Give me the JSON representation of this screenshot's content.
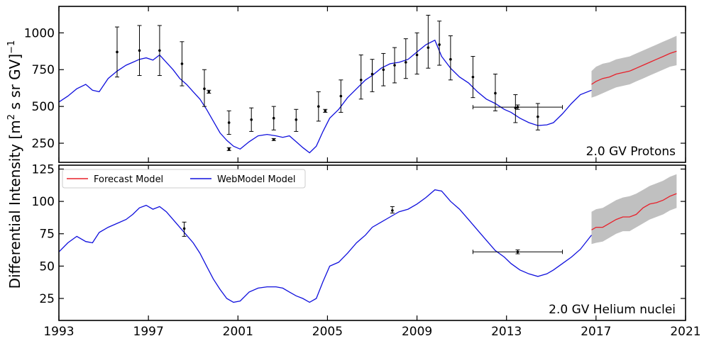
{
  "figure": {
    "ylabel": "Differential Intensity [m$^{2}$ s sr GV]$^{-1}$",
    "ylabel_main": "Differential Intensity [m",
    "ylabel_sup1": "2",
    "ylabel_mid": " s sr GV]",
    "ylabel_sup2": "−1",
    "xlim": [
      1993,
      2021
    ],
    "xticks": [
      1993,
      1997,
      2001,
      2005,
      2009,
      2013,
      2017,
      2021
    ],
    "colors": {
      "forecast": "#e8202a",
      "webmodel": "#1010dd",
      "band": "#c0c0c0",
      "points": "#000000"
    },
    "legend": {
      "position": "top-left of lower panel",
      "entries": [
        "Forecast Model",
        "WebModel Model"
      ]
    }
  },
  "chart_data": [
    {
      "type": "line",
      "title": "2.0 GV Protons",
      "ylim": [
        120,
        1180
      ],
      "yticks": [
        250,
        500,
        750,
        1000
      ],
      "series": [
        {
          "name": "WebModel Model",
          "color": "#1010dd",
          "x": [
            1993.0,
            1993.4,
            1993.8,
            1994.2,
            1994.5,
            1994.8,
            1995.2,
            1995.6,
            1996.0,
            1996.3,
            1996.6,
            1996.9,
            1997.2,
            1997.5,
            1997.8,
            1998.1,
            1998.4,
            1998.7,
            1999.0,
            1999.3,
            1999.6,
            1999.9,
            2000.2,
            2000.5,
            2000.8,
            2001.1,
            2001.5,
            2001.9,
            2002.3,
            2002.7,
            2003.0,
            2003.3,
            2003.6,
            2003.9,
            2004.2,
            2004.5,
            2004.8,
            2005.1,
            2005.5,
            2005.9,
            2006.3,
            2006.7,
            2007.0,
            2007.4,
            2007.8,
            2008.2,
            2008.6,
            2009.0,
            2009.4,
            2009.8,
            2010.1,
            2010.5,
            2010.9,
            2011.3,
            2011.7,
            2012.1,
            2012.5,
            2012.9,
            2013.2,
            2013.6,
            2014.0,
            2014.4,
            2014.8,
            2015.1,
            2015.5,
            2015.9,
            2016.3,
            2016.8
          ],
          "y": [
            530,
            570,
            620,
            650,
            610,
            600,
            690,
            740,
            780,
            800,
            820,
            830,
            815,
            850,
            800,
            750,
            690,
            650,
            600,
            550,
            480,
            400,
            320,
            270,
            230,
            210,
            260,
            300,
            310,
            300,
            290,
            300,
            260,
            220,
            185,
            230,
            330,
            420,
            480,
            560,
            620,
            680,
            710,
            760,
            790,
            800,
            820,
            870,
            920,
            950,
            840,
            760,
            700,
            660,
            600,
            550,
            520,
            480,
            460,
            420,
            390,
            370,
            375,
            390,
            450,
            520,
            580,
            610
          ]
        },
        {
          "name": "Forecast Model",
          "color": "#e8202a",
          "x": [
            2016.8,
            2017.0,
            2017.3,
            2017.6,
            2017.9,
            2018.2,
            2018.5,
            2018.8,
            2019.1,
            2019.4,
            2019.7,
            2020.0,
            2020.3,
            2020.6
          ],
          "y": [
            650,
            670,
            690,
            700,
            720,
            730,
            740,
            760,
            780,
            800,
            820,
            840,
            860,
            875
          ],
          "band_low": [
            560,
            570,
            590,
            610,
            630,
            640,
            650,
            670,
            690,
            710,
            730,
            750,
            770,
            780
          ],
          "band_high": [
            740,
            770,
            790,
            800,
            820,
            830,
            840,
            860,
            880,
            900,
            920,
            940,
            960,
            980
          ]
        }
      ],
      "points": [
        {
          "x": 1995.6,
          "y": 870,
          "lo": 700,
          "hi": 1040
        },
        {
          "x": 1996.6,
          "y": 880,
          "lo": 710,
          "hi": 1050
        },
        {
          "x": 1997.5,
          "y": 880,
          "lo": 710,
          "hi": 1050
        },
        {
          "x": 1998.5,
          "y": 790,
          "lo": 640,
          "hi": 940
        },
        {
          "x": 1999.5,
          "y": 620,
          "lo": 500,
          "hi": 750
        },
        {
          "x": 1999.7,
          "y": 600,
          "lo": 590,
          "hi": 610
        },
        {
          "x": 2000.6,
          "y": 390,
          "lo": 310,
          "hi": 470
        },
        {
          "x": 2001.6,
          "y": 410,
          "lo": 330,
          "hi": 490
        },
        {
          "x": 2002.6,
          "y": 420,
          "lo": 340,
          "hi": 500
        },
        {
          "x": 2003.6,
          "y": 410,
          "lo": 330,
          "hi": 480
        },
        {
          "x": 2004.6,
          "y": 500,
          "lo": 400,
          "hi": 600
        },
        {
          "x": 2005.6,
          "y": 570,
          "lo": 460,
          "hi": 680
        },
        {
          "x": 2006.5,
          "y": 680,
          "lo": 550,
          "hi": 850
        },
        {
          "x": 2007.0,
          "y": 720,
          "lo": 600,
          "hi": 820
        },
        {
          "x": 2007.5,
          "y": 750,
          "lo": 640,
          "hi": 860
        },
        {
          "x": 2008.0,
          "y": 780,
          "lo": 660,
          "hi": 900
        },
        {
          "x": 2008.5,
          "y": 800,
          "lo": 690,
          "hi": 960
        },
        {
          "x": 2009.0,
          "y": 850,
          "lo": 720,
          "hi": 1000
        },
        {
          "x": 2009.5,
          "y": 900,
          "lo": 760,
          "hi": 1120
        },
        {
          "x": 2010.0,
          "y": 920,
          "lo": 780,
          "hi": 1080
        },
        {
          "x": 2010.5,
          "y": 820,
          "lo": 680,
          "hi": 980
        },
        {
          "x": 2011.5,
          "y": 700,
          "lo": 560,
          "hi": 840
        },
        {
          "x": 2012.5,
          "y": 590,
          "lo": 470,
          "hi": 720
        },
        {
          "x": 2013.4,
          "y": 490,
          "lo": 390,
          "hi": 580
        },
        {
          "x": 2014.4,
          "y": 430,
          "lo": 340,
          "hi": 520
        },
        {
          "x": 2000.6,
          "y": 210,
          "lo": 200,
          "hi": 220
        },
        {
          "x": 2002.6,
          "y": 275,
          "lo": 268,
          "hi": 282
        },
        {
          "x": 2004.9,
          "y": 470,
          "lo": 460,
          "hi": 480
        },
        {
          "x": 2013.5,
          "y": 495,
          "xlo": 2011.5,
          "xhi": 2015.5,
          "lo": 480,
          "hi": 510
        }
      ],
      "annotation": "2.0 GV Protons"
    },
    {
      "type": "line",
      "title": "2.0 GV Helium nuclei",
      "ylim": [
        8,
        128
      ],
      "yticks": [
        25,
        50,
        75,
        100,
        125
      ],
      "series": [
        {
          "name": "WebModel Model",
          "color": "#1010dd",
          "x": [
            1993.0,
            1993.4,
            1993.8,
            1994.2,
            1994.5,
            1994.8,
            1995.2,
            1995.6,
            1996.0,
            1996.3,
            1996.6,
            1996.9,
            1997.2,
            1997.5,
            1997.8,
            1998.1,
            1998.4,
            1998.7,
            1999.0,
            1999.3,
            1999.6,
            1999.9,
            2000.2,
            2000.5,
            2000.8,
            2001.1,
            2001.5,
            2001.9,
            2002.3,
            2002.7,
            2003.0,
            2003.3,
            2003.6,
            2003.9,
            2004.2,
            2004.5,
            2004.8,
            2005.1,
            2005.5,
            2005.9,
            2006.3,
            2006.7,
            2007.0,
            2007.4,
            2007.8,
            2008.2,
            2008.6,
            2009.0,
            2009.4,
            2009.8,
            2010.1,
            2010.5,
            2010.9,
            2011.3,
            2011.7,
            2012.1,
            2012.5,
            2012.9,
            2013.2,
            2013.6,
            2014.0,
            2014.4,
            2014.8,
            2015.1,
            2015.5,
            2015.9,
            2016.3,
            2016.8
          ],
          "y": [
            61,
            68,
            73,
            69,
            68,
            76,
            80,
            83,
            86,
            90,
            95,
            97,
            94,
            96,
            92,
            86,
            80,
            74,
            68,
            60,
            50,
            40,
            32,
            25,
            22,
            23,
            30,
            33,
            34,
            34,
            33,
            30,
            27,
            25,
            22,
            25,
            38,
            50,
            53,
            60,
            68,
            74,
            80,
            84,
            88,
            92,
            94,
            98,
            103,
            109,
            108,
            100,
            94,
            86,
            78,
            70,
            62,
            57,
            52,
            47,
            44,
            42,
            44,
            47,
            52,
            57,
            63,
            74
          ]
        },
        {
          "name": "Forecast Model",
          "color": "#e8202a",
          "x": [
            2016.8,
            2017.0,
            2017.3,
            2017.6,
            2017.9,
            2018.2,
            2018.5,
            2018.8,
            2019.1,
            2019.4,
            2019.7,
            2020.0,
            2020.3,
            2020.6
          ],
          "y": [
            78,
            80,
            80,
            83,
            86,
            88,
            88,
            90,
            95,
            98,
            99,
            101,
            104,
            106
          ],
          "band_low": [
            67,
            68,
            69,
            72,
            75,
            77,
            77,
            80,
            83,
            86,
            88,
            90,
            93,
            95
          ],
          "band_high": [
            92,
            94,
            95,
            98,
            101,
            103,
            104,
            106,
            109,
            112,
            114,
            116,
            119,
            121
          ]
        }
      ],
      "points": [
        {
          "x": 1998.6,
          "y": 79,
          "lo": 73,
          "hi": 84
        },
        {
          "x": 2007.9,
          "y": 93,
          "lo": 91,
          "hi": 96
        },
        {
          "x": 2013.5,
          "y": 61,
          "xlo": 2011.5,
          "xhi": 2015.5,
          "lo": 59.5,
          "hi": 62.5
        }
      ],
      "annotation": "2.0 GV Helium nuclei"
    }
  ]
}
